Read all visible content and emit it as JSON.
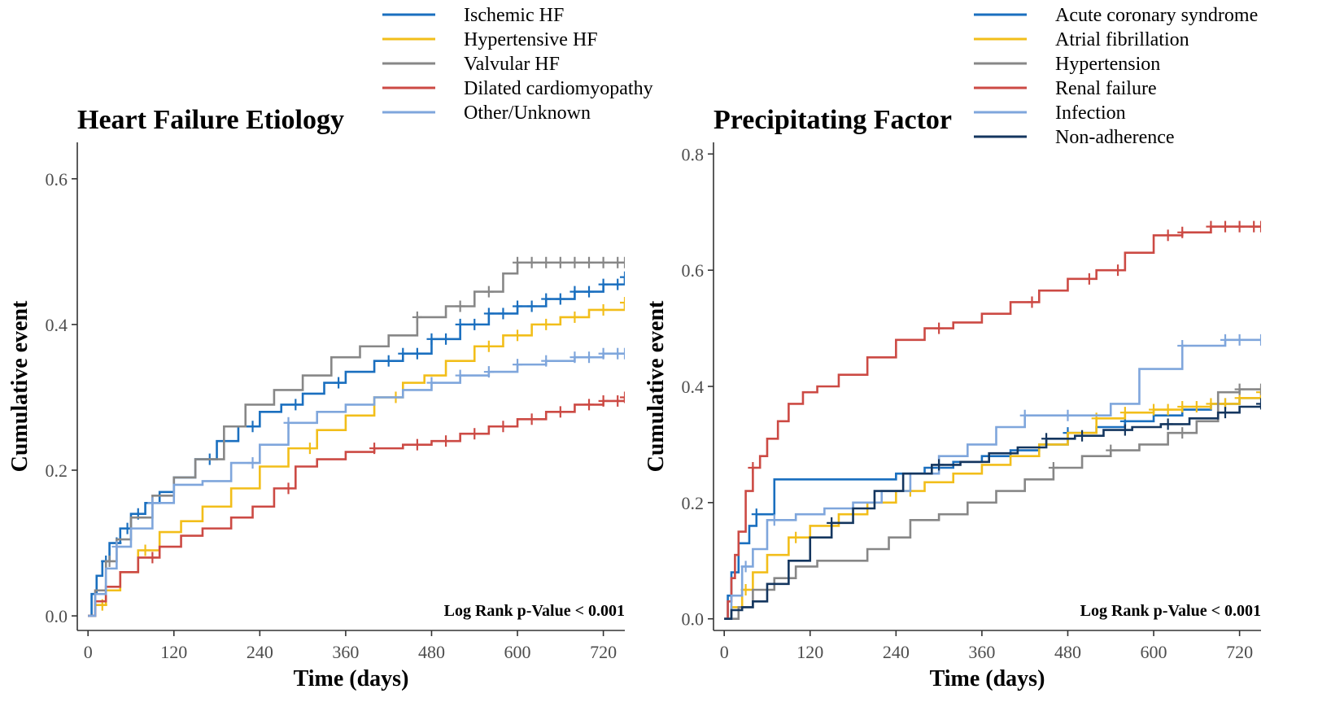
{
  "chart_data": [
    {
      "type": "line",
      "subtype": "kaplan-meier-cumulative-incidence",
      "title": "Heart Failure Etiology",
      "xlabel": "Time (days)",
      "ylabel": "Cumulative event",
      "xlim": [
        -15,
        750
      ],
      "ylim": [
        -0.02,
        0.65
      ],
      "xticks": [
        0,
        120,
        240,
        360,
        480,
        600,
        720
      ],
      "yticks": [
        0.0,
        0.2,
        0.4,
        0.6
      ],
      "ytick_labels": [
        "0.0",
        "0.2",
        "0.4",
        "0.6"
      ],
      "grid": false,
      "legend_position": "top",
      "annotation": "Log Rank  p-Value < 0.001",
      "series": [
        {
          "name": "Ischemic HF",
          "color": "#1a6fbf",
          "x": [
            0,
            5,
            12,
            20,
            30,
            45,
            60,
            80,
            100,
            120,
            150,
            180,
            210,
            240,
            270,
            300,
            330,
            360,
            400,
            440,
            480,
            520,
            560,
            600,
            640,
            680,
            720,
            750
          ],
          "y": [
            0,
            0.03,
            0.055,
            0.075,
            0.1,
            0.12,
            0.14,
            0.155,
            0.17,
            0.19,
            0.215,
            0.24,
            0.26,
            0.28,
            0.29,
            0.305,
            0.32,
            0.335,
            0.35,
            0.36,
            0.38,
            0.4,
            0.415,
            0.425,
            0.435,
            0.445,
            0.455,
            0.465
          ],
          "censor_x": [
            25,
            40,
            55,
            70,
            170,
            230,
            290,
            350,
            420,
            440,
            460,
            480,
            500,
            520,
            540,
            560,
            580,
            600,
            620,
            640,
            660,
            680,
            700,
            720,
            740,
            750
          ]
        },
        {
          "name": "Hypertensive HF",
          "color": "#f2be1a",
          "x": [
            0,
            10,
            25,
            45,
            70,
            100,
            130,
            160,
            200,
            240,
            280,
            320,
            360,
            400,
            440,
            470,
            500,
            540,
            580,
            620,
            660,
            700,
            750
          ],
          "y": [
            0,
            0.015,
            0.035,
            0.06,
            0.09,
            0.115,
            0.13,
            0.15,
            0.175,
            0.205,
            0.23,
            0.255,
            0.275,
            0.3,
            0.32,
            0.33,
            0.35,
            0.37,
            0.385,
            0.4,
            0.41,
            0.42,
            0.43
          ],
          "censor_x": [
            20,
            80,
            310,
            430,
            560,
            600,
            640,
            680,
            720,
            750
          ]
        },
        {
          "name": "Valvular HF",
          "color": "#878787",
          "x": [
            0,
            10,
            25,
            40,
            60,
            90,
            120,
            150,
            190,
            220,
            260,
            300,
            340,
            380,
            420,
            460,
            500,
            540,
            580,
            600,
            750
          ],
          "y": [
            0,
            0.035,
            0.075,
            0.105,
            0.135,
            0.165,
            0.19,
            0.215,
            0.26,
            0.29,
            0.31,
            0.33,
            0.355,
            0.37,
            0.385,
            0.41,
            0.425,
            0.445,
            0.47,
            0.485,
            0.485
          ],
          "censor_x": [
            30,
            460,
            520,
            560,
            600,
            620,
            640,
            660,
            680,
            700,
            720,
            740,
            750
          ]
        },
        {
          "name": "Dilated cardiomyopathy",
          "color": "#cc4a44",
          "x": [
            0,
            10,
            25,
            45,
            70,
            100,
            130,
            160,
            200,
            230,
            260,
            290,
            320,
            360,
            400,
            440,
            480,
            520,
            560,
            600,
            640,
            680,
            720,
            750
          ],
          "y": [
            0,
            0.02,
            0.04,
            0.06,
            0.08,
            0.095,
            0.11,
            0.12,
            0.135,
            0.15,
            0.175,
            0.205,
            0.215,
            0.225,
            0.23,
            0.235,
            0.24,
            0.25,
            0.26,
            0.27,
            0.28,
            0.29,
            0.295,
            0.3
          ],
          "censor_x": [
            90,
            280,
            400,
            460,
            500,
            540,
            580,
            620,
            660,
            700,
            720,
            740,
            750
          ]
        },
        {
          "name": "Other/Unknown",
          "color": "#7fa6dc",
          "x": [
            0,
            10,
            25,
            40,
            60,
            90,
            120,
            160,
            200,
            240,
            280,
            320,
            360,
            400,
            440,
            480,
            520,
            560,
            600,
            640,
            680,
            720,
            750
          ],
          "y": [
            0,
            0.03,
            0.065,
            0.095,
            0.12,
            0.155,
            0.18,
            0.185,
            0.21,
            0.235,
            0.265,
            0.28,
            0.29,
            0.3,
            0.31,
            0.32,
            0.33,
            0.335,
            0.345,
            0.35,
            0.355,
            0.36,
            0.36
          ],
          "censor_x": [
            40,
            90,
            230,
            280,
            480,
            520,
            560,
            600,
            640,
            680,
            700,
            720,
            740,
            750
          ]
        }
      ]
    },
    {
      "type": "line",
      "subtype": "kaplan-meier-cumulative-incidence",
      "title": "Precipitating Factor",
      "xlabel": "Time (days)",
      "ylabel": "Cumulative event",
      "xlim": [
        -15,
        750
      ],
      "ylim": [
        -0.02,
        0.82
      ],
      "xticks": [
        0,
        120,
        240,
        360,
        480,
        600,
        720
      ],
      "yticks": [
        0.0,
        0.2,
        0.4,
        0.6,
        0.8
      ],
      "ytick_labels": [
        "0.0",
        "0.2",
        "0.4",
        "0.6",
        "0.8"
      ],
      "grid": false,
      "legend_position": "top-right",
      "annotation": "Log Rank  p-Value < 0.001",
      "series": [
        {
          "name": "Acute coronary syndrome",
          "color": "#1a6fbf",
          "x": [
            0,
            5,
            10,
            20,
            35,
            45,
            70,
            90,
            120,
            180,
            240,
            280,
            320,
            360,
            400,
            440,
            480,
            520,
            560,
            600,
            640,
            680,
            720,
            750
          ],
          "y": [
            0,
            0.04,
            0.08,
            0.13,
            0.16,
            0.18,
            0.24,
            0.24,
            0.24,
            0.24,
            0.25,
            0.26,
            0.27,
            0.28,
            0.29,
            0.3,
            0.32,
            0.33,
            0.34,
            0.35,
            0.36,
            0.37,
            0.38,
            0.38
          ],
          "censor_x": [
            45,
            480,
            560,
            700
          ]
        },
        {
          "name": "Atrial fibrillation",
          "color": "#f2be1a",
          "x": [
            0,
            10,
            25,
            40,
            60,
            90,
            120,
            160,
            200,
            240,
            280,
            320,
            360,
            400,
            440,
            480,
            520,
            560,
            600,
            640,
            680,
            720,
            750
          ],
          "y": [
            0,
            0.02,
            0.05,
            0.08,
            0.11,
            0.14,
            0.16,
            0.18,
            0.2,
            0.22,
            0.235,
            0.25,
            0.265,
            0.28,
            0.3,
            0.32,
            0.345,
            0.355,
            0.36,
            0.365,
            0.37,
            0.38,
            0.39
          ],
          "censor_x": [
            30,
            100,
            260,
            520,
            560,
            600,
            620,
            640,
            660,
            680,
            700,
            720,
            750
          ]
        },
        {
          "name": "Hypertension",
          "color": "#878787",
          "x": [
            0,
            20,
            40,
            70,
            100,
            130,
            160,
            200,
            230,
            260,
            300,
            340,
            380,
            420,
            460,
            500,
            540,
            580,
            620,
            660,
            690,
            720,
            750
          ],
          "y": [
            0,
            0.02,
            0.05,
            0.07,
            0.09,
            0.1,
            0.1,
            0.12,
            0.14,
            0.17,
            0.18,
            0.2,
            0.22,
            0.24,
            0.26,
            0.28,
            0.29,
            0.3,
            0.32,
            0.34,
            0.39,
            0.395,
            0.395
          ],
          "censor_x": [
            460,
            540,
            640,
            720,
            750
          ]
        },
        {
          "name": "Renal failure",
          "color": "#cc4a44",
          "x": [
            0,
            5,
            10,
            15,
            20,
            30,
            40,
            50,
            60,
            75,
            90,
            110,
            130,
            160,
            200,
            240,
            280,
            320,
            360,
            400,
            440,
            480,
            520,
            560,
            600,
            640,
            680,
            720,
            750
          ],
          "y": [
            0,
            0.03,
            0.07,
            0.11,
            0.15,
            0.22,
            0.26,
            0.28,
            0.31,
            0.34,
            0.37,
            0.39,
            0.4,
            0.42,
            0.45,
            0.48,
            0.5,
            0.51,
            0.525,
            0.545,
            0.565,
            0.585,
            0.6,
            0.63,
            0.66,
            0.665,
            0.675,
            0.675,
            0.675
          ],
          "censor_x": [
            40,
            300,
            430,
            510,
            550,
            620,
            640,
            680,
            700,
            720,
            740,
            750
          ]
        },
        {
          "name": "Infection",
          "color": "#7fa6dc",
          "x": [
            0,
            10,
            25,
            40,
            60,
            100,
            140,
            180,
            220,
            260,
            300,
            340,
            380,
            420,
            460,
            500,
            540,
            580,
            600,
            640,
            700,
            750
          ],
          "y": [
            0,
            0.04,
            0.09,
            0.12,
            0.17,
            0.18,
            0.19,
            0.2,
            0.22,
            0.25,
            0.28,
            0.3,
            0.33,
            0.35,
            0.35,
            0.35,
            0.37,
            0.43,
            0.43,
            0.47,
            0.48,
            0.48
          ],
          "censor_x": [
            30,
            70,
            420,
            480,
            640,
            700,
            720,
            750
          ]
        },
        {
          "name": "Non-adherence",
          "color": "#14365f",
          "x": [
            0,
            10,
            25,
            40,
            60,
            90,
            120,
            150,
            180,
            210,
            250,
            290,
            330,
            370,
            410,
            450,
            490,
            530,
            570,
            610,
            650,
            690,
            720,
            750
          ],
          "y": [
            0,
            0.015,
            0.02,
            0.03,
            0.06,
            0.1,
            0.14,
            0.165,
            0.19,
            0.22,
            0.25,
            0.265,
            0.27,
            0.285,
            0.295,
            0.31,
            0.315,
            0.325,
            0.33,
            0.335,
            0.345,
            0.355,
            0.365,
            0.37
          ],
          "censor_x": [
            150,
            300,
            450,
            500,
            560,
            620,
            700,
            750
          ]
        }
      ]
    }
  ]
}
